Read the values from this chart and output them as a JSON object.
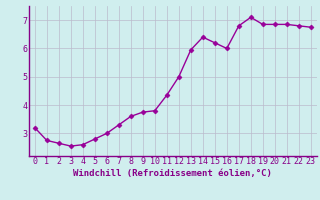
{
  "x": [
    0,
    1,
    2,
    3,
    4,
    5,
    6,
    7,
    8,
    9,
    10,
    11,
    12,
    13,
    14,
    15,
    16,
    17,
    18,
    19,
    20,
    21,
    22,
    23
  ],
  "y": [
    3.2,
    2.75,
    2.65,
    2.55,
    2.6,
    2.8,
    3.0,
    3.3,
    3.6,
    3.75,
    3.8,
    4.35,
    5.0,
    5.95,
    6.4,
    6.2,
    6.0,
    6.8,
    7.1,
    6.85,
    6.85,
    6.85,
    6.8,
    6.75
  ],
  "line_color": "#990099",
  "marker": "D",
  "markersize": 2.5,
  "linewidth": 1.0,
  "background_color": "#d0eeee",
  "grid_color": "#bbbbcc",
  "xlabel": "Windchill (Refroidissement éolien,°C)",
  "xlim": [
    -0.5,
    23.5
  ],
  "ylim": [
    2.2,
    7.5
  ],
  "yticks": [
    3,
    4,
    5,
    6,
    7
  ],
  "xticks": [
    0,
    1,
    2,
    3,
    4,
    5,
    6,
    7,
    8,
    9,
    10,
    11,
    12,
    13,
    14,
    15,
    16,
    17,
    18,
    19,
    20,
    21,
    22,
    23
  ],
  "tick_color": "#880088",
  "label_fontsize": 6.5,
  "tick_fontsize": 6.0,
  "spine_color": "#880088"
}
